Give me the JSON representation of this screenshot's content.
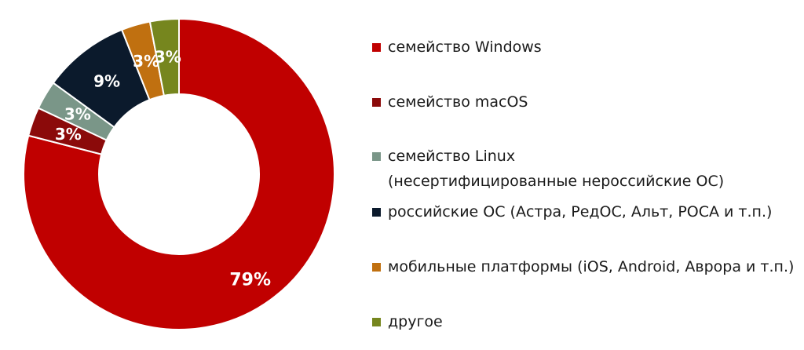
{
  "chart_data": {
    "type": "pie",
    "donut": true,
    "categories": [
      "семейство Windows",
      "семейство macOS",
      "семейство Linux\n(несертифицированные нероссийские ОС)",
      "российские ОС (Астра, РедОС, Альт, РОСА и т.п.)",
      "мобильные платформы (iOS, Android, Аврора и т.п.)",
      "другое"
    ],
    "values": [
      79,
      3,
      3,
      9,
      3,
      3
    ],
    "value_labels": [
      "79%",
      "3%",
      "3%",
      "9%",
      "3%",
      "3%"
    ],
    "colors": [
      "#c00000",
      "#8b0a0a",
      "#7a9688",
      "#0b1a2c",
      "#c07010",
      "#76861e"
    ],
    "legend_position": "right",
    "start_angle": "top, clockwise"
  }
}
